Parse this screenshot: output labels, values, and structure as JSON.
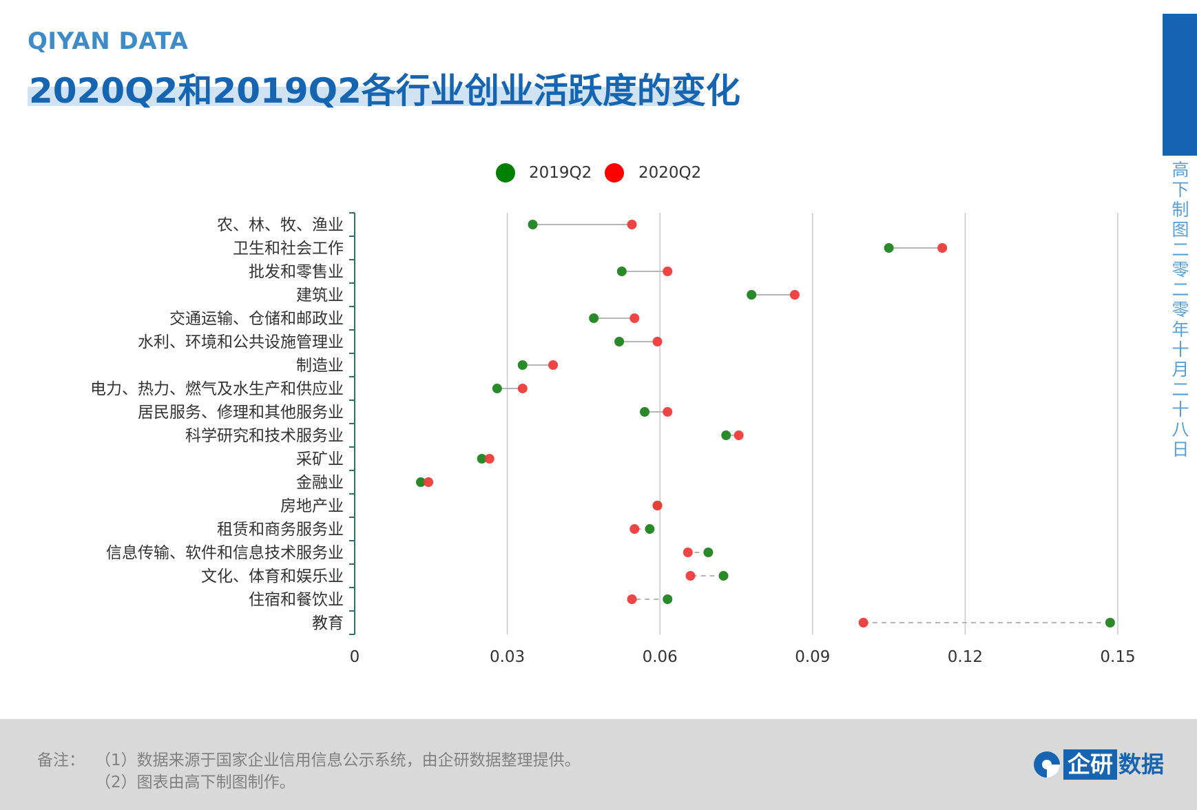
{
  "header": {
    "brand": "QIYAN DATA",
    "title": "2020Q2和2019Q2各行业创业活跃度的变化"
  },
  "side": {
    "vertical_text": "高下制图 二零二零年十月二十八日"
  },
  "colors": {
    "series_2019": "#2a8a2a",
    "series_2020": "#ef3b3b",
    "title_blue": "#1565b2",
    "brand_blue": "#3d8bc7"
  },
  "chart_data": {
    "type": "dumbbell",
    "categories": [
      "农、林、牧、渔业",
      "卫生和社会工作",
      "批发和零售业",
      "建筑业",
      "交通运输、仓储和邮政业",
      "水利、环境和公共设施管理业",
      "制造业",
      "电力、热力、燃气及水生产和供应业",
      "居民服务、修理和其他服务业",
      "科学研究和技术服务业",
      "采矿业",
      "金融业",
      "房地产业",
      "租赁和商务服务业",
      "信息传输、软件和信息技术服务业",
      "文化、体育和娱乐业",
      "住宿和餐饮业",
      "教育"
    ],
    "series": [
      {
        "name": "2019Q2",
        "values": [
          0.035,
          0.105,
          0.0525,
          0.078,
          0.047,
          0.052,
          0.033,
          0.028,
          0.057,
          0.073,
          0.025,
          0.013,
          0.0595,
          0.058,
          0.0695,
          0.0725,
          0.0615,
          0.1485
        ]
      },
      {
        "name": "2020Q2",
        "values": [
          0.0545,
          0.1155,
          0.0615,
          0.0865,
          0.055,
          0.0595,
          0.039,
          0.033,
          0.0615,
          0.0755,
          0.0265,
          0.0145,
          0.0595,
          0.055,
          0.0655,
          0.066,
          0.0545,
          0.1
        ]
      }
    ],
    "xticks": [
      "0",
      "0.03",
      "0.06",
      "0.09",
      "0.12",
      "0.15"
    ],
    "xlim": [
      0,
      0.15
    ],
    "grid": true,
    "legend": "top-center",
    "connector": "solid when 2020Q2 > 2019Q2, dashed when 2020Q2 < 2019Q2"
  },
  "footer": {
    "note_label": "备注：",
    "note_1": "（1）数据来源于国家企业信用信息公示系统，由企研数据整理提供。",
    "note_2": "（2）图表由高下制图制作。",
    "logo_box": "企研",
    "logo_text": "数据"
  }
}
